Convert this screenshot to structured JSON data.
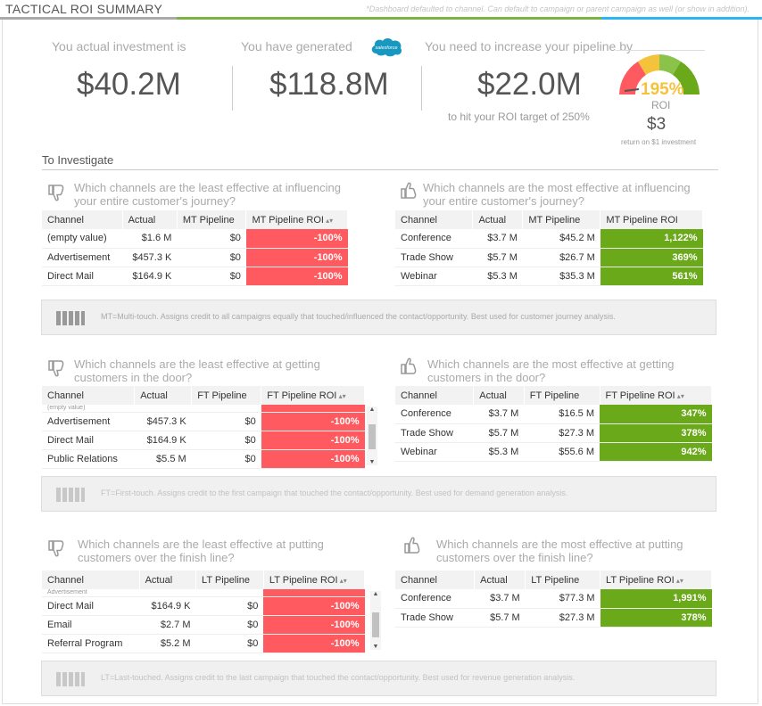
{
  "header": {
    "title": "TACTICAL ROI SUMMARY",
    "note": "*Dashboard defaulted to channel. Can default to campaign or parent campaign as well (or show in addition)."
  },
  "summary": {
    "investment_label": "You actual investment is",
    "investment_value": "$40.2M",
    "generated_label": "You have generated",
    "generated_value": "$118.8M",
    "logo_text": "salesforce",
    "increase_label": "You need to increase your pipeline by",
    "increase_value": "$22.0M",
    "increase_sub": "to hit your ROI target of 250%",
    "roi_percent": "195%",
    "roi_label": "ROI",
    "roi_dollar": "$3",
    "roi_foot": "return on $1 investment"
  },
  "section_title": "To Investigate",
  "blocks": {
    "mt_least": {
      "question_line1": "Which channels are the least effective at influencing",
      "question_line2": "your entire customer's journey?",
      "headers": [
        "Channel",
        "Actual",
        "MT Pipeline",
        "MT Pipeline ROI"
      ],
      "rows": [
        [
          "(empty value)",
          "$1.6 M",
          "$0",
          "-100%"
        ],
        [
          "Advertisement",
          "$457.3 K",
          "$0",
          "-100%"
        ],
        [
          "Direct Mail",
          "$164.9 K",
          "$0",
          "-100%"
        ]
      ]
    },
    "mt_most": {
      "question_line1": "Which channels are the most effective at influencing",
      "question_line2": "your entire customer's journey?",
      "headers": [
        "Channel",
        "Actual",
        "MT Pipeline",
        "MT Pipeline ROI"
      ],
      "rows": [
        [
          "Conference",
          "$3.7 M",
          "$45.2 M",
          "1,122%"
        ],
        [
          "Trade Show",
          "$5.7 M",
          "$26.7 M",
          "369%"
        ],
        [
          "Webinar",
          "$5.3 M",
          "$35.3 M",
          "561%"
        ]
      ]
    },
    "mt_info": "MT=Multi-touch. Assigns credit to all campaigns equally that touched/influenced the contact/opportunity. Best used for customer journey analysis.",
    "ft_least": {
      "question_line1": "Which channels are the least effective at getting",
      "question_line2": "customers in the door?",
      "headers": [
        "Channel",
        "Actual",
        "FT Pipeline",
        "FT Pipeline ROI"
      ],
      "partial": [
        "(empty value)",
        "",
        "",
        ""
      ],
      "rows": [
        [
          "Advertisement",
          "$457.3 K",
          "$0",
          "-100%"
        ],
        [
          "Direct Mail",
          "$164.9 K",
          "$0",
          "-100%"
        ],
        [
          "Public Relations",
          "$5.5 M",
          "$0",
          "-100%"
        ]
      ]
    },
    "ft_most": {
      "question_line1": "Which channels are the most effective at getting",
      "question_line2": "customers in the door?",
      "headers": [
        "Channel",
        "Actual",
        "FT Pipeline",
        "FT Pipeline ROI"
      ],
      "rows": [
        [
          "Conference",
          "$3.7 M",
          "$16.5 M",
          "347%"
        ],
        [
          "Trade Show",
          "$5.7 M",
          "$27.3 M",
          "378%"
        ],
        [
          "Webinar",
          "$5.3 M",
          "$55.6 M",
          "942%"
        ]
      ]
    },
    "ft_info": "FT=First-touch. Assigns credit to the first campaign that touched the contact/opportunity. Best used for demand generation analysis.",
    "lt_least": {
      "question_line1": "Which channels are the least effective at putting",
      "question_line2": "customers over the finish line?",
      "headers": [
        "Channel",
        "Actual",
        "LT Pipeline",
        "LT Pipeline ROI"
      ],
      "partial": [
        "Advertisement",
        "",
        "",
        ""
      ],
      "rows": [
        [
          "Direct Mail",
          "$164.9 K",
          "$0",
          "-100%"
        ],
        [
          "Email",
          "$2.7 M",
          "$0",
          "-100%"
        ],
        [
          "Referral Program",
          "$5.2 M",
          "$0",
          "-100%"
        ]
      ]
    },
    "lt_most": {
      "question_line1": "Which channels are the most effective at putting",
      "question_line2": "customers over the finish line?",
      "headers": [
        "Channel",
        "Actual",
        "LT Pipeline",
        "LT Pipeline ROI"
      ],
      "rows": [
        [
          "Conference",
          "$3.7 M",
          "$77.3 M",
          "1,991%"
        ],
        [
          "Trade Show",
          "$5.7 M",
          "$27.3 M",
          "378%"
        ]
      ]
    },
    "lt_info": "LT=Last-touched. Assigns credit to the last campaign that touched the contact/opportunity. Best used for revenue generation analysis."
  },
  "colors": {
    "negative": "#ff5a5f",
    "positive": "#6aa919",
    "accent_green": "#7cb342",
    "accent_blue": "#29b6f6",
    "roi_yellow": "#f5c33b"
  },
  "icons": {
    "least": "thumbs-down-icon",
    "most": "thumbs-up-icon",
    "info": "bar-chart-icon",
    "gauge": "roi-gauge-icon"
  }
}
